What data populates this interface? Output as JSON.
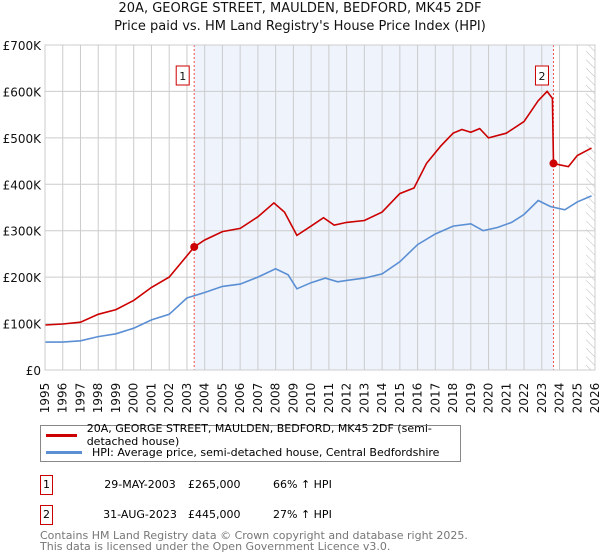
{
  "chart_data": {
    "type": "line",
    "title": "20A, GEORGE STREET, MAULDEN, BEDFORD, MK45 2DF",
    "subtitle": "Price paid vs. HM Land Registry's House Price Index (HPI)",
    "xlim": [
      1995,
      2026
    ],
    "ylim": [
      0,
      700000
    ],
    "y_ticks": [
      0,
      100000,
      200000,
      300000,
      400000,
      500000,
      600000,
      700000
    ],
    "y_tick_labels": [
      "£0",
      "£100K",
      "£200K",
      "£300K",
      "£400K",
      "£500K",
      "£600K",
      "£700K"
    ],
    "x_ticks": [
      "1995",
      "1996",
      "1997",
      "1998",
      "1999",
      "2000",
      "2001",
      "2002",
      "2003",
      "2004",
      "2005",
      "2006",
      "2007",
      "2008",
      "2009",
      "2010",
      "2011",
      "2012",
      "2013",
      "2014",
      "2015",
      "2016",
      "2017",
      "2018",
      "2019",
      "2020",
      "2021",
      "2022",
      "2023",
      "2024",
      "2025",
      "2026"
    ],
    "grid": true,
    "shaded_range": [
      2003.41,
      2023.66
    ],
    "hatched_from": 2025.5,
    "series": [
      {
        "name": "20A, GEORGE STREET, MAULDEN, BEDFORD, MK45 2DF (semi-detached house)",
        "color": "#cc0000",
        "x": [
          1995,
          1996,
          1997,
          1998,
          1999,
          2000,
          2001,
          2002,
          2003.41,
          2004,
          2005,
          2006,
          2007,
          2007.9,
          2008.5,
          2009.2,
          2010,
          2010.7,
          2011.3,
          2012,
          2013,
          2014,
          2015,
          2015.8,
          2016.5,
          2017.3,
          2018,
          2018.5,
          2019,
          2019.5,
          2020,
          2021,
          2022,
          2022.8,
          2023.3,
          2023.6,
          2023.66,
          2024,
          2024.5,
          2025,
          2025.8
        ],
        "y": [
          97000,
          99000,
          103000,
          120000,
          130000,
          150000,
          178000,
          200000,
          265000,
          280000,
          298000,
          305000,
          330000,
          360000,
          340000,
          290000,
          310000,
          328000,
          312000,
          318000,
          322000,
          340000,
          380000,
          392000,
          445000,
          482000,
          510000,
          518000,
          512000,
          520000,
          500000,
          510000,
          535000,
          580000,
          600000,
          585000,
          445000,
          442000,
          438000,
          462000,
          478000
        ]
      },
      {
        "name": "HPI: Average price, semi-detached house, Central Bedfordshire",
        "color": "#5b8fd4",
        "x": [
          1995,
          1996,
          1997,
          1998,
          1999,
          2000,
          2001,
          2002,
          2003,
          2004,
          2005,
          2006,
          2007,
          2008,
          2008.7,
          2009.2,
          2010,
          2010.8,
          2011.5,
          2012,
          2013,
          2014,
          2015,
          2016,
          2017,
          2018,
          2019,
          2019.7,
          2020.5,
          2021.3,
          2022,
          2022.8,
          2023.5,
          2024.3,
          2025,
          2025.8
        ],
        "y": [
          60000,
          60000,
          63000,
          72000,
          78000,
          90000,
          108000,
          120000,
          155000,
          167000,
          180000,
          185000,
          200000,
          218000,
          205000,
          175000,
          188000,
          198000,
          190000,
          193000,
          198000,
          207000,
          233000,
          270000,
          293000,
          310000,
          315000,
          300000,
          307000,
          318000,
          335000,
          365000,
          352000,
          345000,
          362000,
          375000
        ]
      }
    ],
    "annotations": [
      {
        "label": "1",
        "x": 2003.41,
        "y": 265000
      },
      {
        "label": "2",
        "x": 2023.66,
        "y": 445000
      }
    ]
  },
  "sales": [
    {
      "num": "1",
      "date": "29-MAY-2003",
      "price": "£265,000",
      "hpi": "66% ↑ HPI"
    },
    {
      "num": "2",
      "date": "31-AUG-2023",
      "price": "£445,000",
      "hpi": "27% ↑ HPI"
    }
  ],
  "footer": {
    "line1": "Contains HM Land Registry data © Crown copyright and database right 2025.",
    "line2": "This data is licensed under the Open Government Licence v3.0."
  }
}
